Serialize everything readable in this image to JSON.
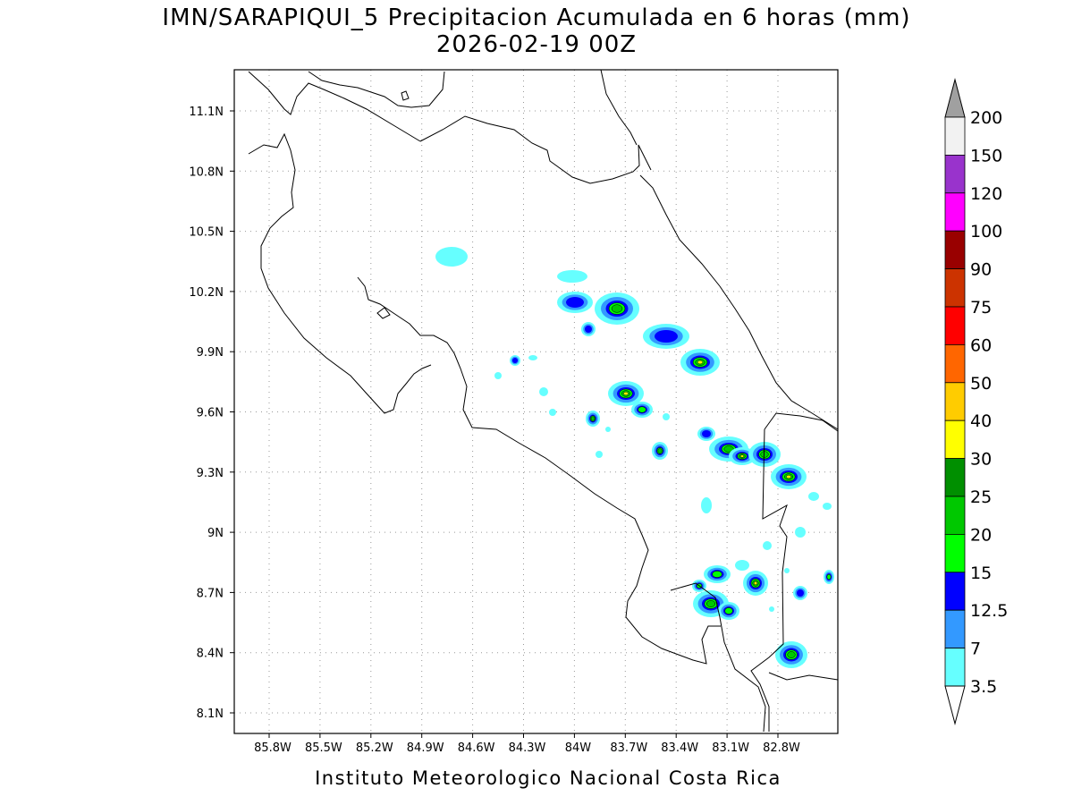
{
  "title": "IMN/SARAPIQUI_5 Precipitacion Acumulada en 6 horas (mm)",
  "subtitle": "2026-02-19 00Z",
  "map": {
    "lat_labels": [
      "11.1N",
      "10.8N",
      "10.5N",
      "10.2N",
      "9.9N",
      "9.6N",
      "9.3N",
      "9N",
      "8.7N",
      "8.4N",
      "8.1N"
    ],
    "lon_labels": [
      "85.8W",
      "85.5W",
      "85.2W",
      "84.9W",
      "84.6W",
      "84.3W",
      "84W",
      "83.7W",
      "83.4W",
      "83.1W",
      "82.8W"
    ]
  },
  "colorbar": {
    "levels": [
      200,
      150,
      120,
      100,
      90,
      75,
      60,
      50,
      40,
      30,
      25,
      20,
      15,
      12.5,
      7,
      3.5
    ],
    "colors": [
      "#f2f2f2",
      "#9933cc",
      "#ff00ff",
      "#990000",
      "#cc3300",
      "#ff0000",
      "#ff6600",
      "#ffcc00",
      "#ffff00",
      "#008f00",
      "#00c800",
      "#00ff00",
      "#0000ff",
      "#3399ff",
      "#66ffff"
    ],
    "over_color": "#a0a0a0",
    "under_color": "#ffffff"
  },
  "footer": "Instituto Meteorologico Nacional Costa Rica"
}
